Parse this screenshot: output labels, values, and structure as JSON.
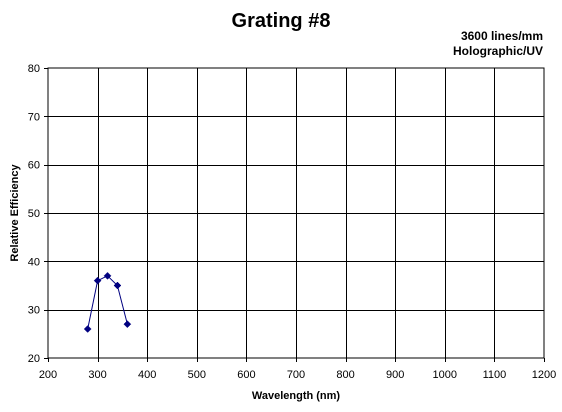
{
  "chart_data": {
    "type": "line",
    "title": "Grating #8",
    "subtitle_lines": [
      "3600 lines/mm",
      "Holographic/UV"
    ],
    "xlabel": "Wavelength (nm)",
    "ylabel": "Relative Efficiency",
    "xlim": [
      200,
      1200
    ],
    "ylim": [
      20,
      80
    ],
    "x_ticks": [
      200,
      300,
      400,
      500,
      600,
      700,
      800,
      900,
      1000,
      1100,
      1200
    ],
    "y_ticks": [
      20,
      30,
      40,
      50,
      60,
      70,
      80
    ],
    "grid": true,
    "series": [
      {
        "x": [
          280,
          300,
          320,
          340,
          360
        ],
        "y": [
          26,
          36,
          37,
          35,
          27
        ],
        "color": "#000080",
        "marker": "diamond"
      }
    ]
  }
}
